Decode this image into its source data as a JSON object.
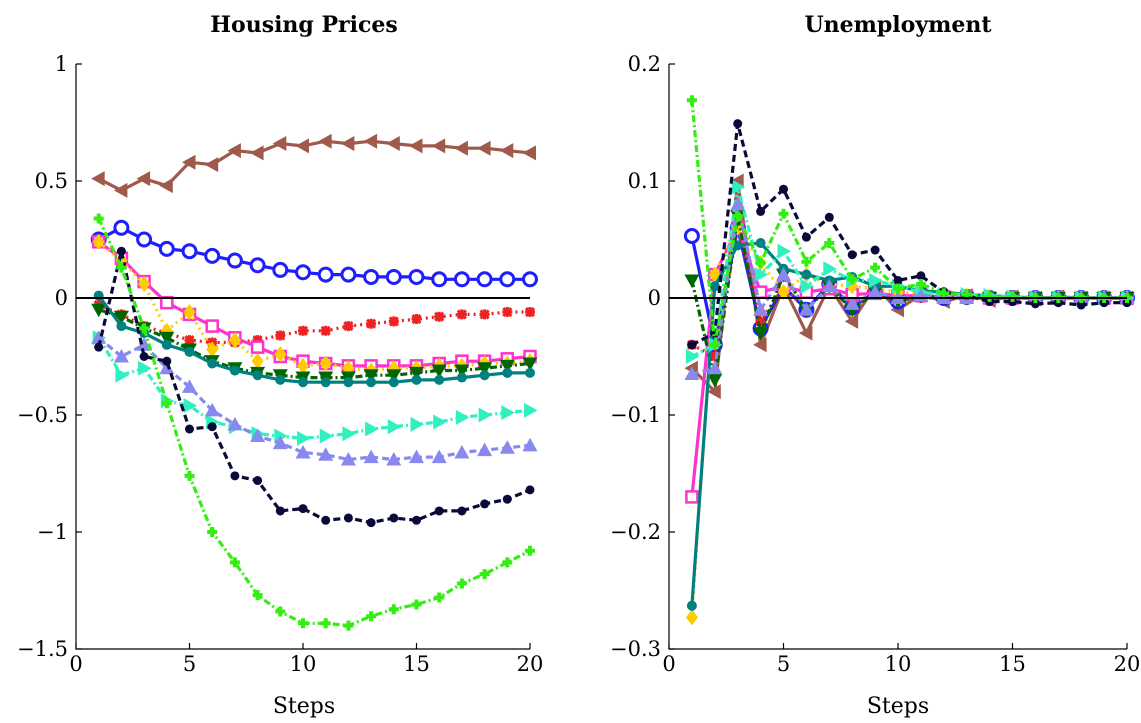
{
  "chart_data": [
    {
      "type": "line",
      "title": "Housing Prices",
      "xlabel": "Steps",
      "ylabel": "",
      "xlim": [
        0,
        20
      ],
      "ylim": [
        -1.5,
        1
      ],
      "xticks": [
        0,
        5,
        10,
        15,
        20
      ],
      "yticks": [
        -1.5,
        -1,
        -0.5,
        0,
        0.5,
        1
      ],
      "xtick_labels": [
        "0",
        "5",
        "10",
        "15",
        "20"
      ],
      "ytick_labels": [
        "−1.5",
        "−1",
        "−0.5",
        "0",
        "0.5",
        "1"
      ],
      "zero_line": true,
      "grid": false,
      "legend": "none",
      "x": [
        1,
        2,
        3,
        4,
        5,
        6,
        7,
        8,
        9,
        10,
        11,
        12,
        13,
        14,
        15,
        16,
        17,
        18,
        19,
        20
      ],
      "series": [
        {
          "color": "#a05a4b",
          "marker": "triangle-left",
          "dash": "solid",
          "values": [
            0.51,
            0.46,
            0.51,
            0.48,
            0.58,
            0.57,
            0.63,
            0.62,
            0.66,
            0.65,
            0.67,
            0.66,
            0.67,
            0.66,
            0.65,
            0.65,
            0.64,
            0.64,
            0.63,
            0.62
          ]
        },
        {
          "color": "#1e1eff",
          "marker": "circle",
          "dash": "solid",
          "values": [
            0.25,
            0.3,
            0.25,
            0.21,
            0.2,
            0.18,
            0.16,
            0.14,
            0.12,
            0.11,
            0.1,
            0.1,
            0.09,
            0.09,
            0.09,
            0.08,
            0.08,
            0.08,
            0.08,
            0.08
          ]
        },
        {
          "color": "#ee2222",
          "marker": "star",
          "dash": "dot",
          "values": [
            -0.03,
            -0.07,
            -0.12,
            -0.15,
            -0.18,
            -0.19,
            -0.19,
            -0.18,
            -0.16,
            -0.14,
            -0.14,
            -0.12,
            -0.11,
            -0.1,
            -0.09,
            -0.08,
            -0.07,
            -0.07,
            -0.06,
            -0.06
          ]
        },
        {
          "color": "#ff33cc",
          "marker": "square",
          "dash": "solid",
          "values": [
            0.24,
            0.17,
            0.07,
            -0.02,
            -0.07,
            -0.12,
            -0.17,
            -0.21,
            -0.25,
            -0.27,
            -0.28,
            -0.29,
            -0.29,
            -0.29,
            -0.29,
            -0.28,
            -0.27,
            -0.27,
            -0.26,
            -0.25
          ]
        },
        {
          "color": "#ffcc00",
          "marker": "diamond",
          "dash": "dot",
          "values": [
            0.24,
            0.16,
            0.06,
            -0.14,
            -0.06,
            -0.22,
            -0.18,
            -0.27,
            -0.24,
            -0.29,
            -0.28,
            -0.3,
            -0.31,
            -0.3,
            -0.3,
            -0.29,
            -0.29,
            -0.28,
            -0.28,
            -0.27
          ]
        },
        {
          "color": "#006600",
          "marker": "triangle-down",
          "dash": "dashdot",
          "values": [
            -0.05,
            -0.08,
            -0.13,
            -0.17,
            -0.22,
            -0.27,
            -0.3,
            -0.32,
            -0.33,
            -0.34,
            -0.34,
            -0.34,
            -0.33,
            -0.33,
            -0.32,
            -0.31,
            -0.31,
            -0.3,
            -0.29,
            -0.28
          ]
        },
        {
          "color": "#008080",
          "marker": "circle-small",
          "dash": "solid",
          "values": [
            0.01,
            -0.12,
            -0.15,
            -0.2,
            -0.23,
            -0.28,
            -0.31,
            -0.33,
            -0.35,
            -0.36,
            -0.36,
            -0.36,
            -0.36,
            -0.36,
            -0.35,
            -0.35,
            -0.34,
            -0.33,
            -0.32,
            -0.32
          ]
        },
        {
          "color": "#30f0c0",
          "marker": "triangle-right",
          "dash": "dashdot",
          "values": [
            -0.17,
            -0.33,
            -0.3,
            -0.44,
            -0.46,
            -0.53,
            -0.55,
            -0.58,
            -0.59,
            -0.6,
            -0.59,
            -0.58,
            -0.56,
            -0.55,
            -0.54,
            -0.53,
            -0.51,
            -0.5,
            -0.49,
            -0.48
          ]
        },
        {
          "color": "#8888ee",
          "marker": "triangle-up",
          "dash": "dash",
          "values": [
            -0.17,
            -0.25,
            -0.2,
            -0.3,
            -0.38,
            -0.48,
            -0.54,
            -0.59,
            -0.62,
            -0.66,
            -0.67,
            -0.69,
            -0.68,
            -0.69,
            -0.68,
            -0.68,
            -0.66,
            -0.65,
            -0.64,
            -0.63
          ]
        },
        {
          "color": "#0a0a3a",
          "marker": "circle-filled",
          "dash": "dash",
          "values": [
            -0.21,
            0.2,
            -0.25,
            -0.27,
            -0.56,
            -0.55,
            -0.76,
            -0.78,
            -0.91,
            -0.9,
            -0.95,
            -0.94,
            -0.96,
            -0.94,
            -0.95,
            -0.91,
            -0.91,
            -0.88,
            -0.86,
            -0.82
          ]
        },
        {
          "color": "#33ee11",
          "marker": "plus",
          "dash": "dashdot",
          "values": [
            0.34,
            0.13,
            -0.13,
            -0.45,
            -0.76,
            -1.0,
            -1.13,
            -1.27,
            -1.34,
            -1.39,
            -1.39,
            -1.4,
            -1.36,
            -1.33,
            -1.31,
            -1.28,
            -1.22,
            -1.18,
            -1.13,
            -1.08
          ]
        }
      ]
    },
    {
      "type": "line",
      "title": "Unemployment",
      "xlabel": "Steps",
      "ylabel": "",
      "xlim": [
        0,
        20
      ],
      "ylim": [
        -0.3,
        0.2
      ],
      "xticks": [
        0,
        5,
        10,
        15,
        20
      ],
      "yticks": [
        -0.3,
        -0.2,
        -0.1,
        0,
        0.1,
        0.2
      ],
      "xtick_labels": [
        "0",
        "5",
        "10",
        "15",
        "20"
      ],
      "ytick_labels": [
        "−0.3",
        "−0.2",
        "−0.1",
        "0",
        "0.1",
        "0.2"
      ],
      "zero_line": true,
      "grid": false,
      "legend": "none",
      "x": [
        1,
        2,
        3,
        4,
        5,
        6,
        7,
        8,
        9,
        10,
        11,
        12,
        13,
        14,
        15,
        16,
        17,
        18,
        19,
        20
      ],
      "series": [
        {
          "color": "#a05a4b",
          "marker": "triangle-left",
          "dash": "solid",
          "values": [
            -0.06,
            -0.08,
            0.1,
            -0.04,
            0.01,
            -0.03,
            0.01,
            -0.02,
            0.01,
            -0.01,
            0.003,
            -0.003,
            0.002,
            -0.002,
            0.001,
            -0.001,
            0.001,
            0,
            0,
            0
          ]
        },
        {
          "color": "#1e1eff",
          "marker": "circle",
          "dash": "solid",
          "values": [
            0.053,
            -0.04,
            0.06,
            -0.026,
            0.01,
            -0.01,
            0.012,
            -0.008,
            0.005,
            -0.003,
            0.003,
            0,
            0.001,
            0,
            0,
            0,
            0,
            0,
            0,
            0
          ]
        },
        {
          "color": "#ee2222",
          "marker": "star",
          "dash": "dot",
          "values": [
            -0.04,
            -0.05,
            0.06,
            -0.02,
            0.01,
            -0.01,
            0.01,
            -0.005,
            0.003,
            0,
            0,
            0,
            0,
            0,
            0,
            0,
            0,
            0,
            0,
            0
          ]
        },
        {
          "color": "#ff33cc",
          "marker": "square",
          "dash": "solid",
          "values": [
            -0.17,
            0.02,
            0.06,
            0.005,
            0.01,
            0.005,
            0.008,
            0.003,
            0.004,
            0.002,
            0.002,
            0.001,
            0.001,
            0,
            0,
            0,
            0,
            0,
            0,
            0
          ]
        },
        {
          "color": "#ffcc00",
          "marker": "diamond",
          "dash": "dot",
          "values": [
            -0.273,
            0.02,
            0.06,
            0.03,
            0.005,
            0.02,
            0.012,
            0.01,
            0.008,
            0.005,
            0.004,
            0.003,
            0.002,
            0.001,
            0,
            0,
            0,
            0,
            0,
            0
          ]
        },
        {
          "color": "#006600",
          "marker": "triangle-down",
          "dash": "dashdot",
          "values": [
            0.015,
            -0.07,
            0.07,
            -0.03,
            0.02,
            -0.01,
            0.01,
            -0.01,
            0.005,
            -0.003,
            0.002,
            0,
            0,
            0,
            0,
            0,
            0,
            0,
            0,
            0
          ]
        },
        {
          "color": "#008080",
          "marker": "circle-small",
          "dash": "solid",
          "values": [
            -0.263,
            0.01,
            0.045,
            0.047,
            0.025,
            0.02,
            0.015,
            0.018,
            0.01,
            0.01,
            0.006,
            0.005,
            0.003,
            0.002,
            0.001,
            0,
            0,
            0,
            0,
            0
          ]
        },
        {
          "color": "#30f0c0",
          "marker": "triangle-right",
          "dash": "dashdot",
          "values": [
            -0.05,
            -0.04,
            0.095,
            0.02,
            0.04,
            0.01,
            0.025,
            0.015,
            0.015,
            0.01,
            0.005,
            0.003,
            0.003,
            0.002,
            0.001,
            0,
            0,
            0,
            0,
            0
          ]
        },
        {
          "color": "#8888ee",
          "marker": "triangle-up",
          "dash": "dash",
          "values": [
            -0.065,
            -0.06,
            0.08,
            -0.01,
            0.02,
            -0.01,
            0.01,
            -0.005,
            0.005,
            0,
            0.002,
            0,
            0,
            0,
            0,
            0,
            0,
            0,
            0,
            0
          ]
        },
        {
          "color": "#0a0a3a",
          "marker": "circle-filled",
          "dash": "dash",
          "values": [
            -0.04,
            -0.03,
            0.149,
            0.074,
            0.093,
            0.052,
            0.069,
            0.037,
            0.041,
            0.015,
            0.019,
            0.005,
            0.002,
            -0.003,
            -0.003,
            -0.005,
            -0.004,
            -0.006,
            -0.004,
            -0.004
          ]
        },
        {
          "color": "#33ee11",
          "marker": "plus",
          "dash": "dashdot",
          "values": [
            0.169,
            -0.04,
            0.07,
            0.03,
            0.072,
            0.031,
            0.047,
            0.016,
            0.026,
            0.008,
            0.012,
            0.004,
            0.003,
            0.001,
            0.001,
            0,
            0,
            0,
            0,
            0
          ]
        }
      ]
    }
  ]
}
